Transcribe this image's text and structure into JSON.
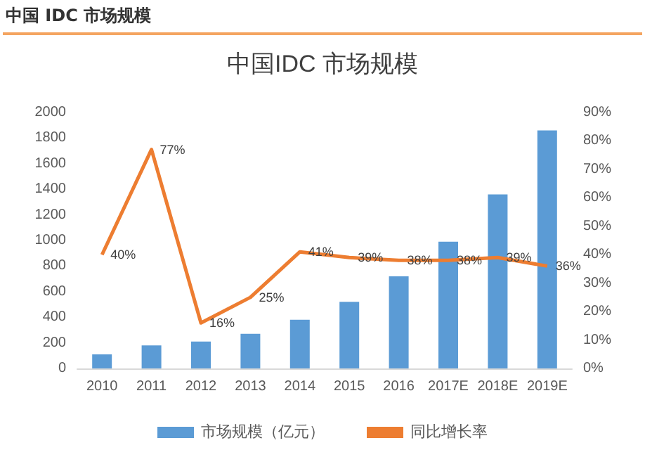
{
  "chart_data": {
    "type": "bar",
    "title": "中国 IDC 市场规模",
    "subtitle": "中国IDC 市场规模",
    "categories": [
      "2010",
      "2011",
      "2012",
      "2013",
      "2014",
      "2015",
      "2016",
      "2017E",
      "2018E",
      "2019E"
    ],
    "series": [
      {
        "name": "市场规模（亿元）",
        "color": "#5b9bd5",
        "values": [
          110,
          180,
          210,
          270,
          380,
          520,
          720,
          990,
          1360,
          1860
        ]
      },
      {
        "name": "同比增长率",
        "type": "line",
        "axis": "y2",
        "color": "#ed7d31",
        "values": [
          40,
          77,
          16,
          25,
          41,
          39,
          38,
          38,
          39,
          36
        ],
        "value_labels": [
          "40%",
          "77%",
          "16%",
          "25%",
          "41%",
          "39%",
          "38%",
          "38%",
          "39%",
          "36%"
        ]
      }
    ],
    "ylim": [
      0,
      2000
    ],
    "yticks": [
      0,
      200,
      400,
      600,
      800,
      1000,
      1200,
      1400,
      1600,
      1800,
      2000
    ],
    "y2lim": [
      0,
      90
    ],
    "y2ticks": [
      {
        "value": 0,
        "label": "0%"
      },
      {
        "value": 10,
        "label": "10%"
      },
      {
        "value": 20,
        "label": "20%"
      },
      {
        "value": 30,
        "label": "30%"
      },
      {
        "value": 40,
        "label": "40%"
      },
      {
        "value": 50,
        "label": "50%"
      },
      {
        "value": 60,
        "label": "60%"
      },
      {
        "value": 70,
        "label": "70%"
      },
      {
        "value": 80,
        "label": "80%"
      },
      {
        "value": 90,
        "label": "90%"
      }
    ],
    "grid": false,
    "legend": "bottom",
    "marker": "none",
    "line_style": "solid"
  }
}
